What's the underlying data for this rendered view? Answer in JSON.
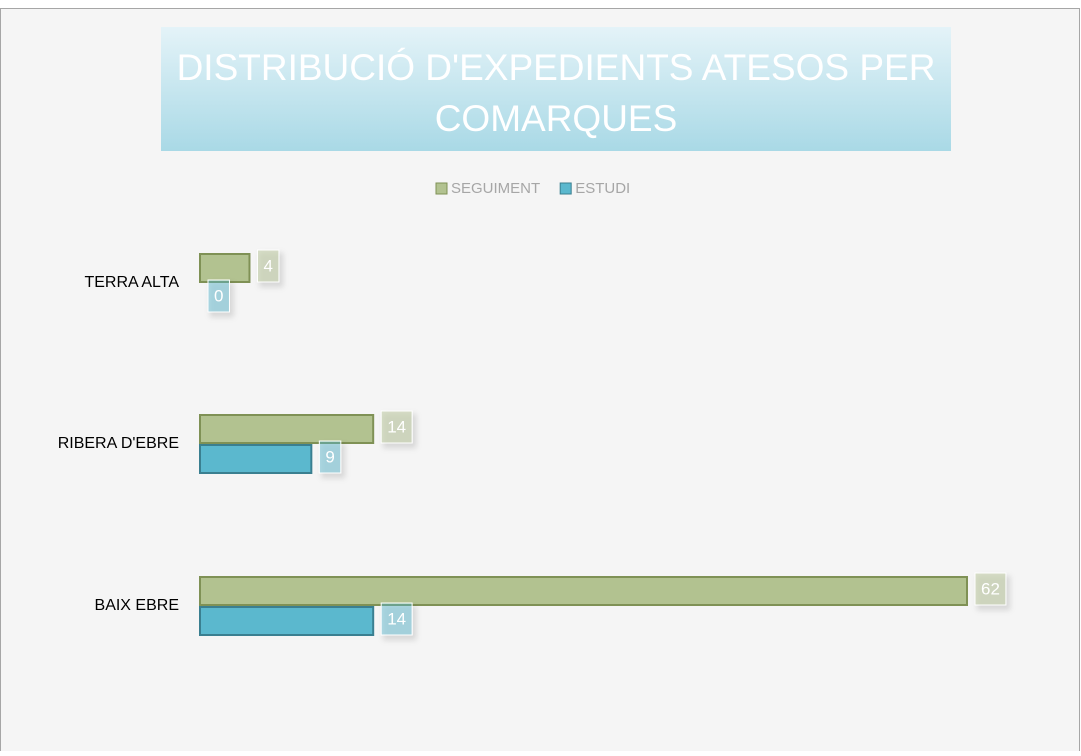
{
  "chart_data": {
    "type": "hbar",
    "title": "DISTRIBUCIÓ D'EXPEDIENTS ATESOS PER COMARQUES",
    "categories": [
      "TERRA ALTA",
      "RIBERA D'EBRE",
      "BAIX EBRE"
    ],
    "series": [
      {
        "name": "SEGUIMENT",
        "color": "#b2c290",
        "values": [
          4,
          14,
          62
        ]
      },
      {
        "name": "ESTUDI",
        "color": "#5bb8ce",
        "values": [
          0,
          9,
          14
        ]
      }
    ],
    "legend": "top"
  }
}
